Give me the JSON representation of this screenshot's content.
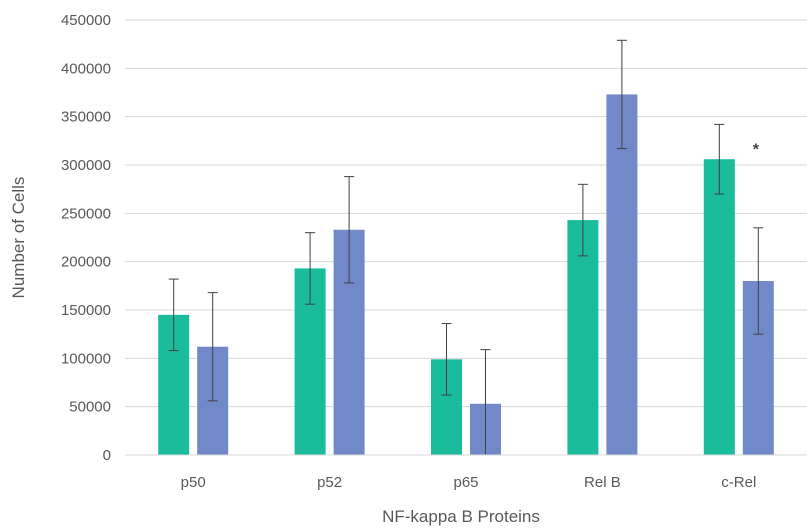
{
  "chart_data": {
    "type": "bar",
    "title": "",
    "xlabel": "NF-kappa B Proteins",
    "ylabel": "Number of Cells",
    "categories": [
      "p50",
      "p52",
      "p65",
      "Rel B",
      "c-Rel"
    ],
    "series": [
      {
        "color": "#1abc9c",
        "values": [
          145000,
          193000,
          99000,
          243000,
          306000
        ],
        "errors": [
          37000,
          37000,
          37000,
          37000,
          36000
        ]
      },
      {
        "color": "#7189c9",
        "values": [
          112000,
          233000,
          53000,
          373000,
          180000
        ],
        "errors": [
          56000,
          55000,
          56000,
          56000,
          55000
        ]
      }
    ],
    "ylim": [
      0,
      450000
    ],
    "yticks": [
      0,
      50000,
      100000,
      150000,
      200000,
      250000,
      300000,
      350000,
      400000,
      450000
    ],
    "grid": true,
    "annotations": [
      {
        "text": "*",
        "category": "c-Rel",
        "value": 322000
      }
    ]
  }
}
